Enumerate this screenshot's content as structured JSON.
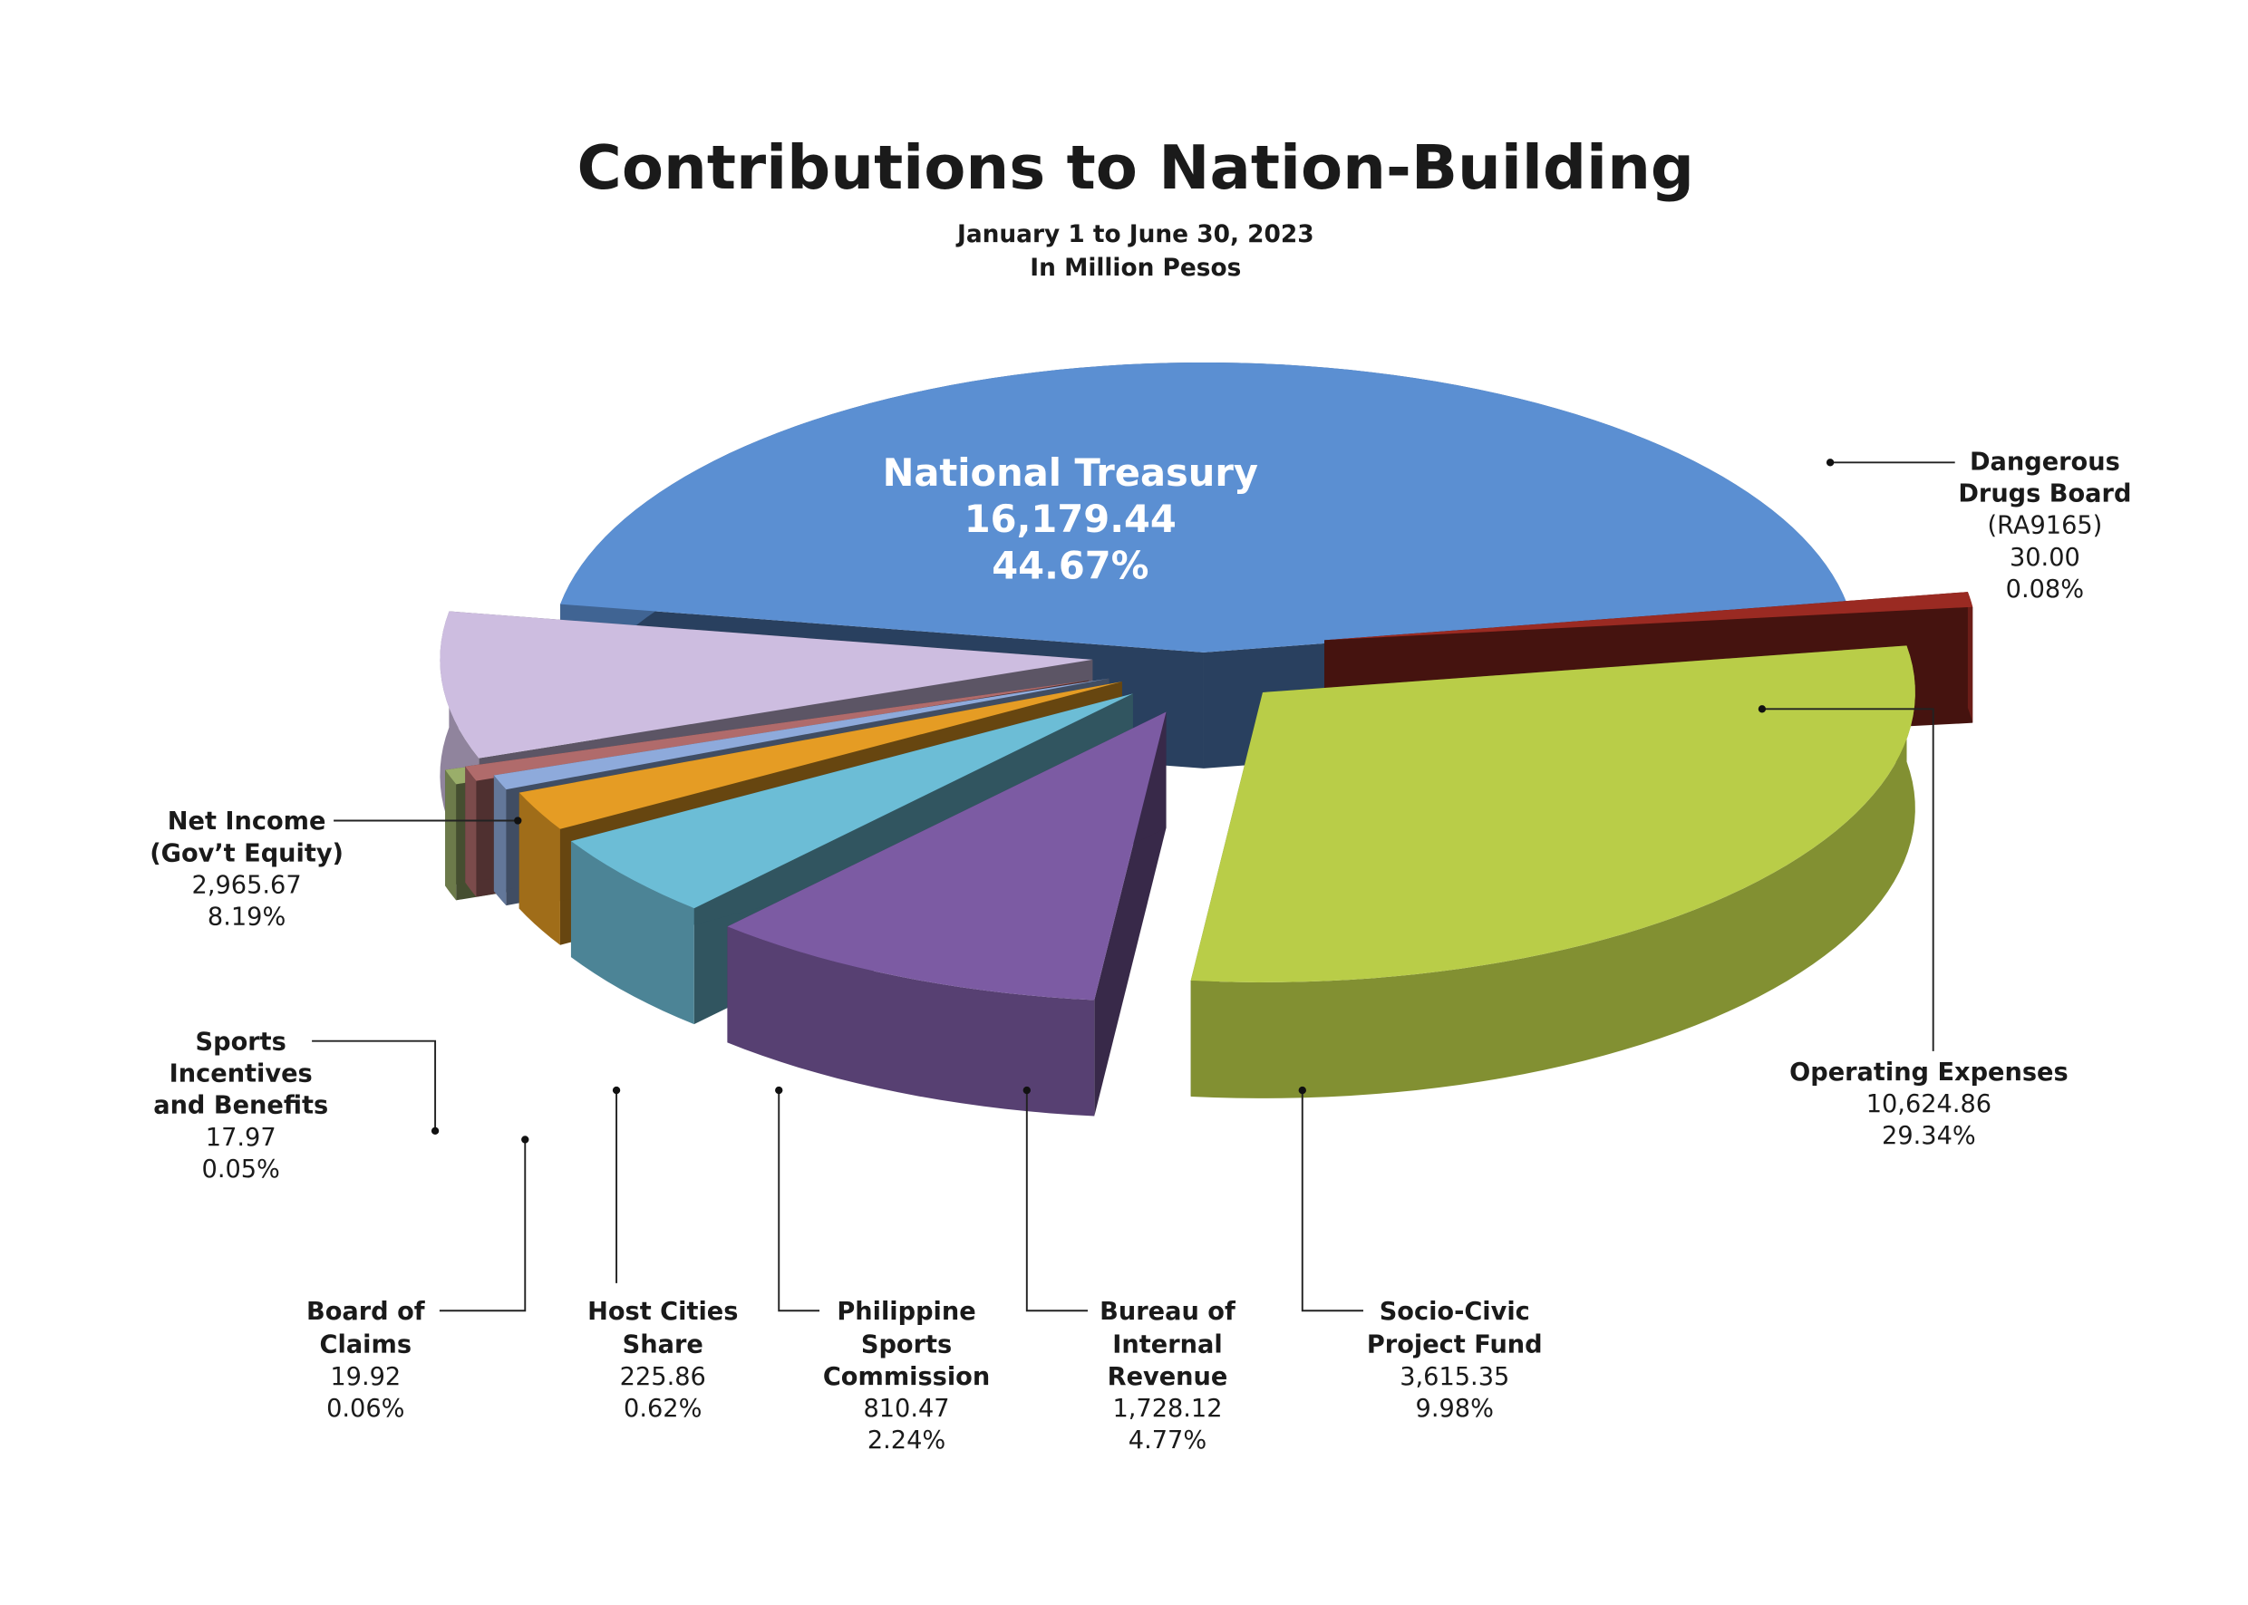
{
  "chart_data": {
    "type": "pie",
    "title": "Contributions to Nation-Building",
    "subtitle": [
      "January 1 to June 30, 2023",
      "In Million Pesos"
    ],
    "three_d": true,
    "exploded": true,
    "slices": [
      {
        "label": "National Treasury",
        "value": 16179.44,
        "value_text": "16,179.44",
        "percent": 44.67,
        "percent_text": "44.67%",
        "color": "#5b8fd2"
      },
      {
        "label": "Dangerous Drugs Board",
        "label_extra": "(RA9165)",
        "value": 30.0,
        "value_text": "30.00",
        "percent": 0.08,
        "percent_text": "0.08%",
        "color": "#9a2a22"
      },
      {
        "label": "Operating Expenses",
        "value": 10624.86,
        "value_text": "10,624.86",
        "percent": 29.34,
        "percent_text": "29.34%",
        "color": "#b9cd48"
      },
      {
        "label": "Socio-Civic Project Fund",
        "value": 3615.35,
        "value_text": "3,615.35",
        "percent": 9.98,
        "percent_text": "9.98%",
        "color": "#7c5ba3"
      },
      {
        "label": "Bureau of Internal Revenue",
        "value": 1728.12,
        "value_text": "1,728.12",
        "percent": 4.77,
        "percent_text": "4.77%",
        "color": "#6cbdd6"
      },
      {
        "label": "Philippine Sports Commission",
        "value": 810.47,
        "value_text": "810.47",
        "percent": 2.24,
        "percent_text": "2.24%",
        "color": "#e59c24"
      },
      {
        "label": "Host Cities Share",
        "value": 225.86,
        "value_text": "225.86",
        "percent": 0.62,
        "percent_text": "0.62%",
        "color": "#8eaadb"
      },
      {
        "label": "Board of Claims",
        "value": 19.92,
        "value_text": "19.92",
        "percent": 0.06,
        "percent_text": "0.06%",
        "color": "#b06b6b"
      },
      {
        "label": "Sports Incentives and Benefits",
        "value": 17.97,
        "value_text": "17.97",
        "percent": 0.05,
        "percent_text": "0.05%",
        "color": "#9aae6a"
      },
      {
        "label": "Net Income (Gov’t Equity)",
        "value": 2965.67,
        "value_text": "2,965.67",
        "percent": 8.19,
        "percent_text": "8.19%",
        "color": "#cdbde0"
      }
    ]
  },
  "labels": {
    "nt": [
      "National Treasury",
      "16,179.44",
      "44.67%"
    ],
    "ddb": [
      "Dangerous",
      "Drugs Board",
      "(RA9165)",
      "30.00",
      "0.08%"
    ],
    "opex": [
      "Operating Expenses",
      "10,624.86",
      "29.34%"
    ],
    "socio": [
      "Socio-Civic",
      "Project Fund",
      "3,615.35",
      "9.98%"
    ],
    "bir": [
      "Bureau of",
      "Internal",
      "Revenue",
      "1,728.12",
      "4.77%"
    ],
    "psc": [
      "Philippine",
      "Sports",
      "Commission",
      "810.47",
      "2.24%"
    ],
    "host": [
      "Host Cities",
      "Share",
      "225.86",
      "0.62%"
    ],
    "boc": [
      "Board of",
      "Claims",
      "19.92",
      "0.06%"
    ],
    "sib": [
      "Sports",
      "Incentives",
      "and Benefits",
      "17.97",
      "0.05%"
    ],
    "net": [
      "Net Income",
      "(Gov’t Equity)",
      "2,965.67",
      "8.19%"
    ]
  }
}
